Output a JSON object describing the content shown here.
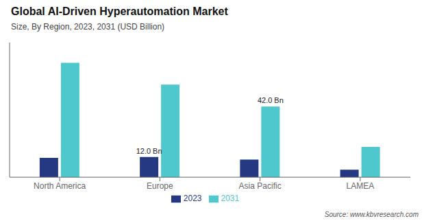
{
  "chart_data": {
    "type": "bar",
    "title": "Global AI-Driven Hyperautomation Market",
    "subtitle": "Size, By Region, 2023, 2031 (USD Billion)",
    "categories": [
      "North America",
      "Europe",
      "Asia Pacific",
      "LAMEA"
    ],
    "series": [
      {
        "name": "2023",
        "color": "#253882",
        "values": [
          11.5,
          12.0,
          10.5,
          4.5
        ],
        "value_labels": [
          null,
          "12.0 Bn",
          null,
          null
        ]
      },
      {
        "name": "2031",
        "color": "#4ec8cc",
        "values": [
          68.0,
          55.0,
          42.0,
          18.0
        ],
        "value_labels": [
          null,
          null,
          "42.0 Bn",
          null
        ]
      }
    ],
    "ylim": [
      0,
      80
    ],
    "grid": false,
    "legend": "bottom",
    "tick_labels": "x",
    "annotations": [
      "Source: www.kbvresearch.com"
    ]
  }
}
